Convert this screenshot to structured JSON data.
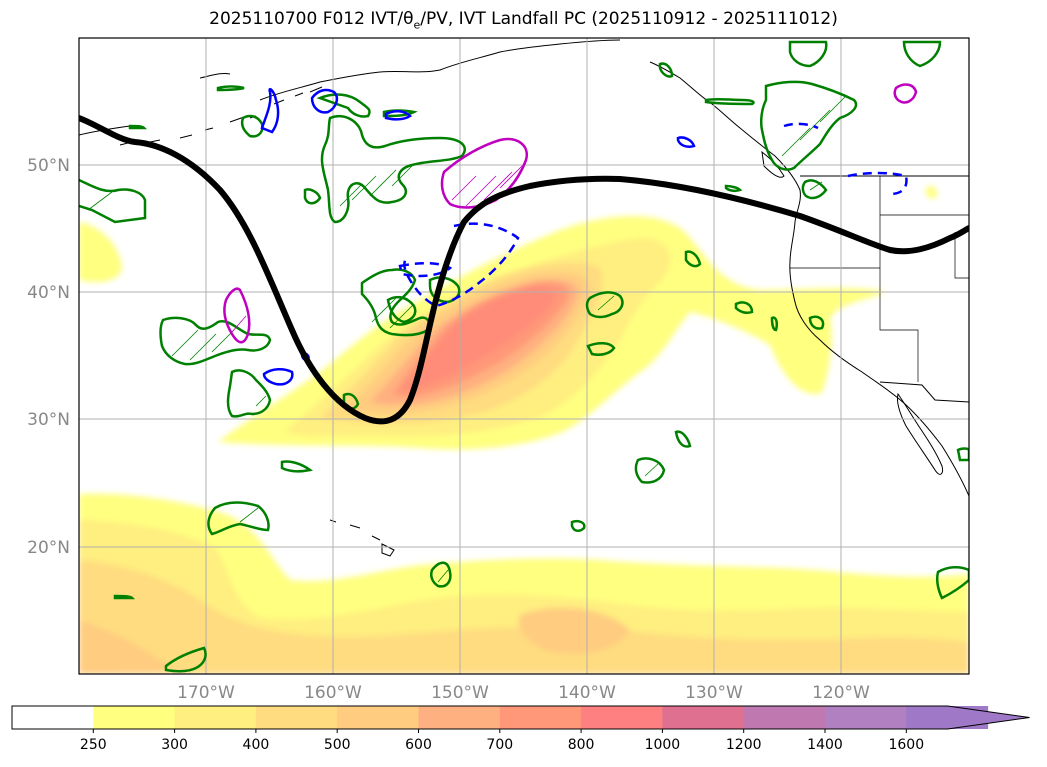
{
  "title": "2025110700 F012 IVT/θe/PV, IVT Landfall PC (2025110912 - 2025111012)",
  "map": {
    "projection": "PlateCarree",
    "lon_range": [
      -180,
      -110
    ],
    "lat_range": [
      10,
      60
    ],
    "lat_ticks": [
      {
        "value": 50,
        "label": "50°N"
      },
      {
        "value": 40,
        "label": "40°N"
      },
      {
        "value": 30,
        "label": "30°N"
      },
      {
        "value": 20,
        "label": "20°N"
      }
    ],
    "lon_ticks": [
      {
        "value": -170,
        "label": "170°W"
      },
      {
        "value": -160,
        "label": "160°W"
      },
      {
        "value": -150,
        "label": "150°W"
      },
      {
        "value": -140,
        "label": "140°W"
      },
      {
        "value": -130,
        "label": "130°W"
      },
      {
        "value": -120,
        "label": "120°W"
      }
    ],
    "gridlines": true,
    "colors": {
      "pv_contour": "#008000",
      "theta_e_solid": "#0000ff",
      "landfall_pc": "#000000",
      "magenta_contour": "#bf00bf",
      "coastline": "#000000"
    }
  },
  "colorbar": {
    "extend": "max",
    "levels": [
      "250",
      "300",
      "400",
      "500",
      "600",
      "700",
      "800",
      "1000",
      "1200",
      "1400",
      "1600"
    ],
    "colors": [
      "#ffffff",
      "#ffff80",
      "#ffee80",
      "#ffdc80",
      "#ffcc80",
      "#ffb080",
      "#ff9878",
      "#ff8080",
      "#e07090",
      "#c078b0",
      "#b080c0",
      "#a078c8"
    ]
  }
}
